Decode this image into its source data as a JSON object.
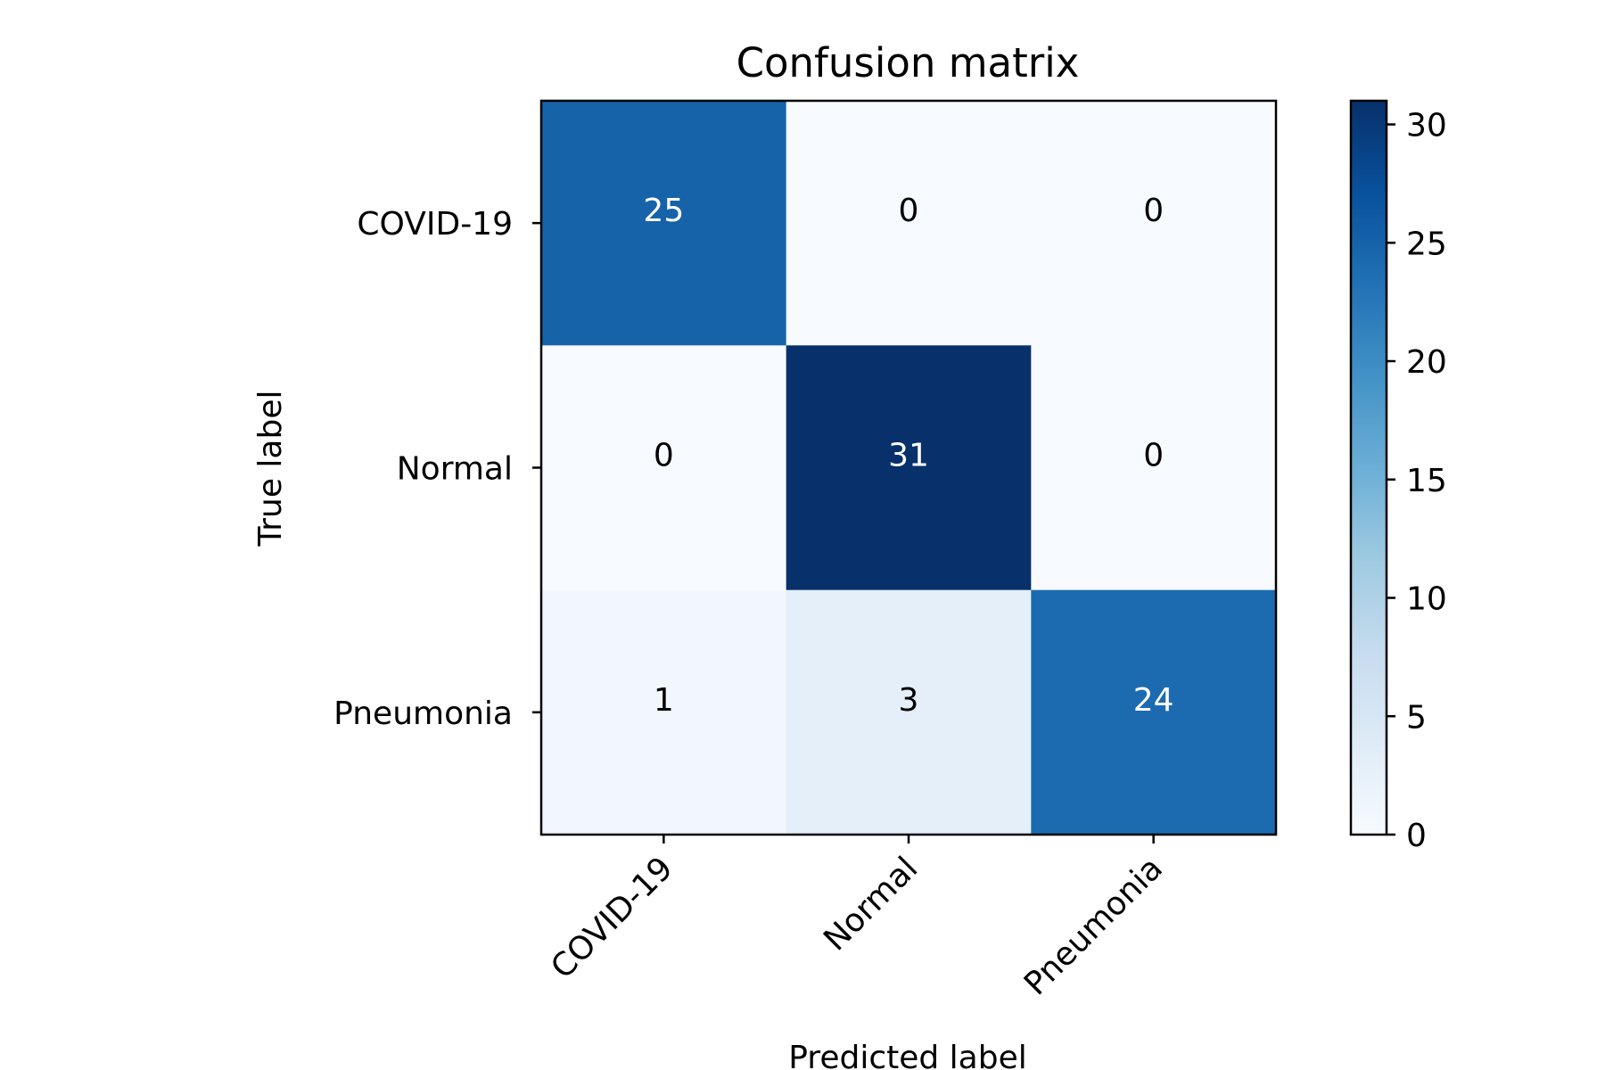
{
  "chart_data": {
    "type": "heatmap",
    "title": "Confusion matrix",
    "xlabel": "Predicted label",
    "ylabel": "True label",
    "x_categories": [
      "COVID-19",
      "Normal",
      "Pneumonia"
    ],
    "y_categories": [
      "COVID-19",
      "Normal",
      "Pneumonia"
    ],
    "values": [
      [
        25,
        0,
        0
      ],
      [
        0,
        31,
        0
      ],
      [
        1,
        3,
        24
      ]
    ],
    "colormap": "Blues",
    "colorbar": {
      "range": [
        0,
        31
      ],
      "ticks": [
        0,
        5,
        10,
        15,
        20,
        25,
        30
      ]
    },
    "colors": {
      "low": "#f7fbff",
      "high": "#08306b",
      "text_light": "#ffffff",
      "text_dark": "#000000"
    }
  }
}
